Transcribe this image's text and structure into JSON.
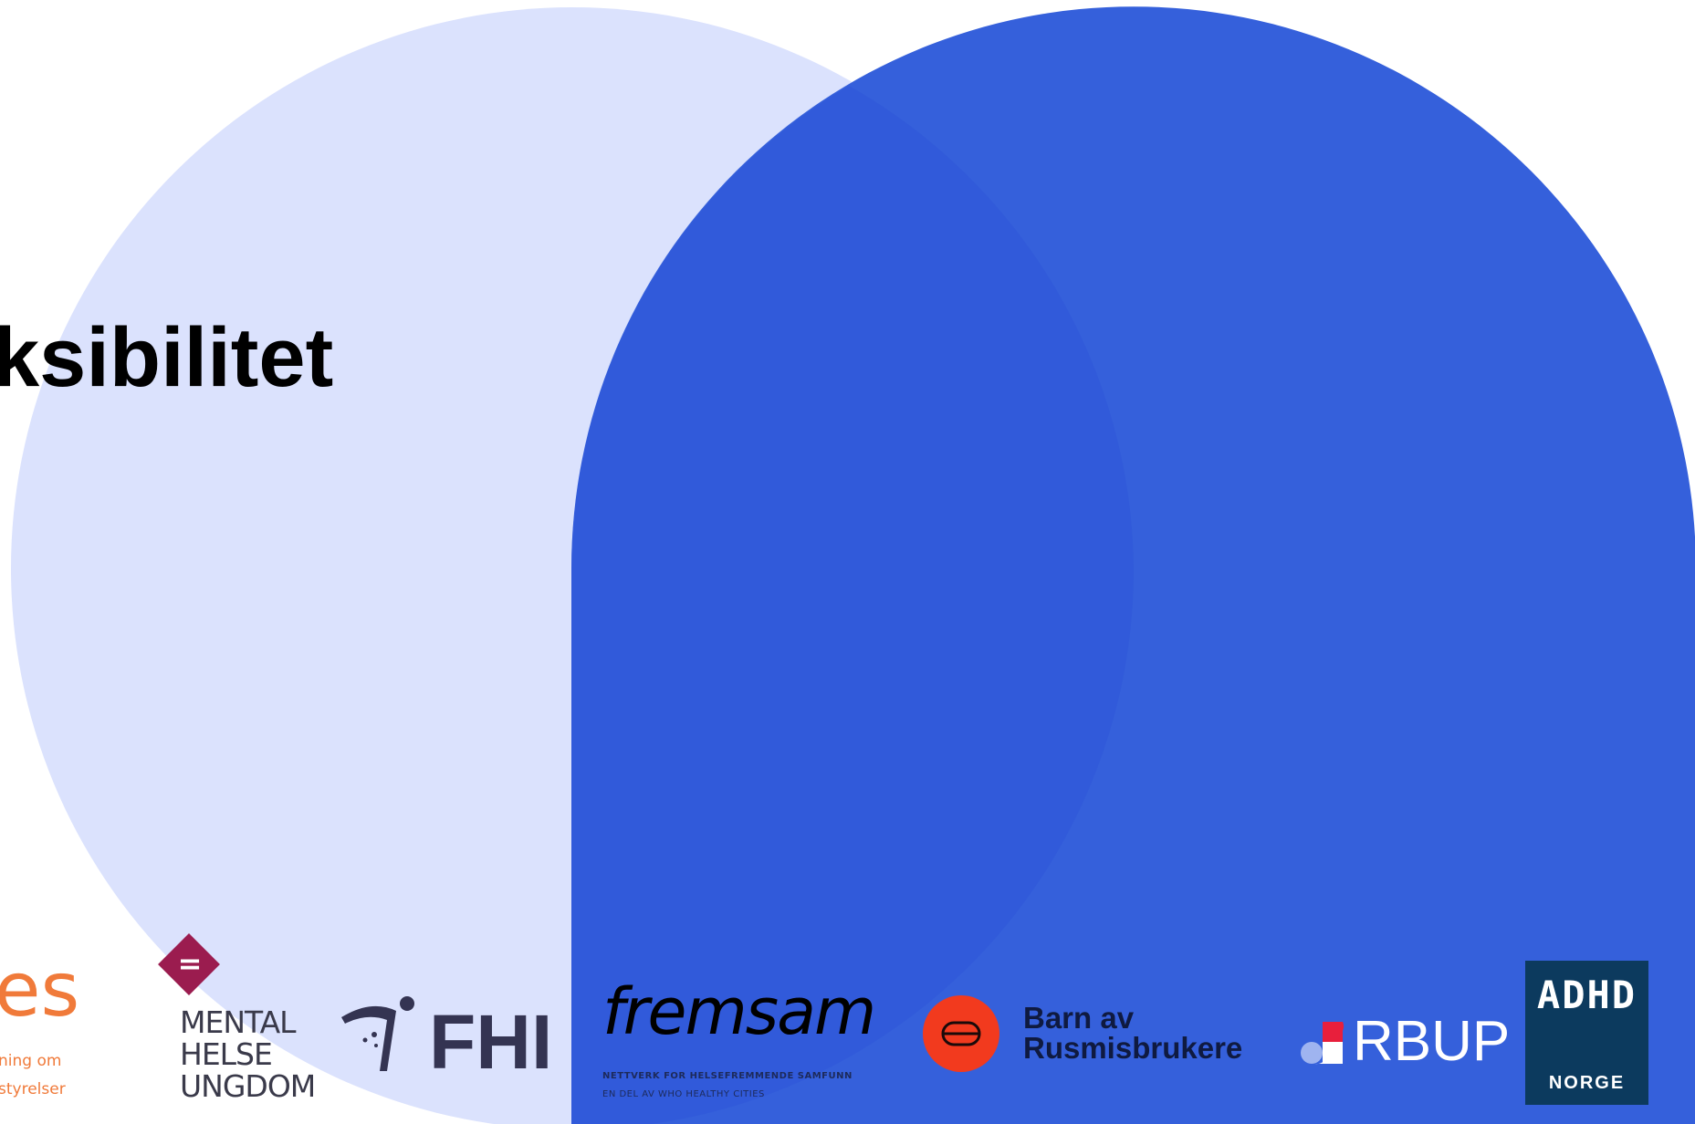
{
  "slide": {
    "title": "ksibilitet"
  },
  "colors": {
    "light_circle": "#dbe2fd",
    "blue_shape": "#3560db",
    "overlap": "#2e55d9"
  },
  "logos": {
    "orange": {
      "mark": "es",
      "line1": "ning om",
      "line2": "styrelser"
    },
    "mental_helse": {
      "mark": "=",
      "text": "MENTAL\nHELSE\nUNGDOM"
    },
    "fhi": {
      "text": "FHI"
    },
    "fremsam": {
      "text": "fremsam",
      "sub1": "NETTVERK FOR HELSEFREMMENDE SAMFUNN",
      "sub2": "EN DEL AV WHO HEALTHY CITIES"
    },
    "barn_av_rusmisbrukere": {
      "text": "Barn av\nRusmisbrukere"
    },
    "rbup": {
      "text": "RBUP"
    },
    "adhd_norge": {
      "mark": "ADHD",
      "text": "NORGE"
    }
  }
}
